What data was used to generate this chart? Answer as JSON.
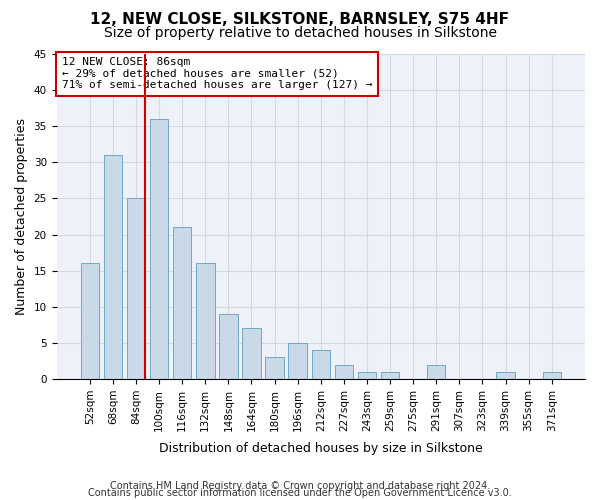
{
  "title1": "12, NEW CLOSE, SILKSTONE, BARNSLEY, S75 4HF",
  "title2": "Size of property relative to detached houses in Silkstone",
  "xlabel": "Distribution of detached houses by size in Silkstone",
  "ylabel": "Number of detached properties",
  "bin_labels": [
    "52sqm",
    "68sqm",
    "84sqm",
    "100sqm",
    "116sqm",
    "132sqm",
    "148sqm",
    "164sqm",
    "180sqm",
    "196sqm",
    "212sqm",
    "227sqm",
    "243sqm",
    "259sqm",
    "275sqm",
    "291sqm",
    "307sqm",
    "323sqm",
    "339sqm",
    "355sqm",
    "371sqm"
  ],
  "values": [
    16,
    31,
    25,
    36,
    21,
    16,
    9,
    7,
    3,
    5,
    4,
    2,
    1,
    1,
    0,
    2,
    0,
    0,
    1,
    0,
    1
  ],
  "bar_color": "#c9d9e8",
  "bar_edge_color": "#6fa8c8",
  "vline_color": "#cc0000",
  "vline_bar_index": 2,
  "annotation_text": "12 NEW CLOSE: 86sqm\n← 29% of detached houses are smaller (52)\n71% of semi-detached houses are larger (127) →",
  "annotation_box_color": "#cc0000",
  "ylim": [
    0,
    45
  ],
  "yticks": [
    0,
    5,
    10,
    15,
    20,
    25,
    30,
    35,
    40,
    45
  ],
  "grid_color": "#d0d8e8",
  "background_color": "#eef2f8",
  "footer1": "Contains HM Land Registry data © Crown copyright and database right 2024.",
  "footer2": "Contains public sector information licensed under the Open Government Licence v3.0.",
  "title1_fontsize": 11,
  "title2_fontsize": 10,
  "xlabel_fontsize": 9,
  "ylabel_fontsize": 9,
  "tick_fontsize": 7.5,
  "footer_fontsize": 7
}
